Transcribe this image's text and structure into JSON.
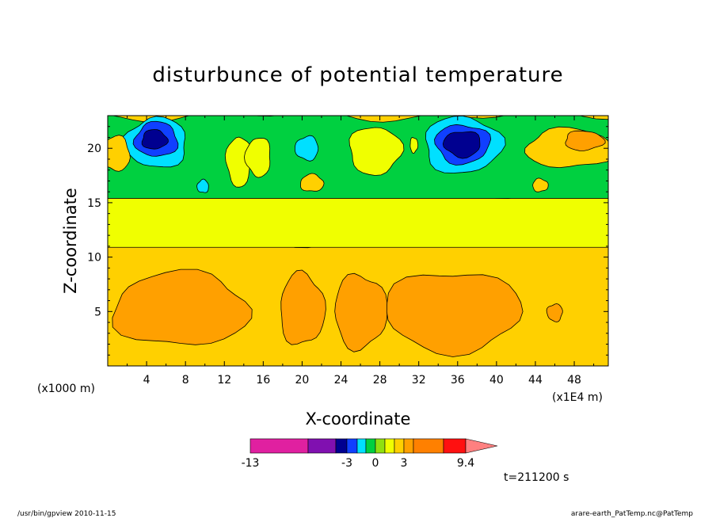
{
  "chart_data": {
    "type": "heatmap",
    "title": "disturbunce of potential temperature",
    "xlabel": "X-coordinate",
    "ylabel": "Z-coordinate",
    "x_unit": "(x1000 m)",
    "x_scale_note": "(x1E4 m)",
    "xlim": [
      0,
      51.5
    ],
    "ylim": [
      0,
      23
    ],
    "x_ticks": [
      4,
      8,
      12,
      16,
      20,
      24,
      28,
      32,
      36,
      40,
      44,
      48
    ],
    "y_ticks": [
      5,
      10,
      15,
      20
    ],
    "time_label": "t=211200 s",
    "colorbar": {
      "levels": [
        -13,
        -3,
        0,
        3,
        9.4
      ],
      "level_labels": [
        "-13",
        "-3",
        "0",
        "3",
        "9.4"
      ],
      "colors": [
        "#e020a0",
        "#8010b0",
        "#000090",
        "#1040ff",
        "#00e0ff",
        "#00d040",
        "#90e010",
        "#f0ff00",
        "#ffd000",
        "#ffa000",
        "#ff8000",
        "#ff1010",
        "#ff8080",
        "#ffc0c0"
      ]
    },
    "bands": [
      {
        "z_top": 11.5,
        "color": "#ffd000"
      },
      {
        "z_top": 16.0,
        "color": "#f0ff00"
      },
      {
        "z_top": 23.0,
        "color": "#00d040"
      }
    ],
    "features": [
      {
        "kind": "warm",
        "x": 7.5,
        "z": 5.2,
        "rx": 7.0,
        "rz": 3.4,
        "color": "#ffa000"
      },
      {
        "kind": "warm",
        "x": 20.0,
        "z": 5.2,
        "rx": 2.3,
        "rz": 3.3,
        "color": "#ffa000"
      },
      {
        "kind": "warm",
        "x": 26.0,
        "z": 5.0,
        "rx": 2.7,
        "rz": 3.4,
        "color": "#ffa000"
      },
      {
        "kind": "warm",
        "x": 35.5,
        "z": 5.0,
        "rx": 7.0,
        "rz": 3.7,
        "color": "#ffa000"
      },
      {
        "kind": "warm",
        "x": 46.0,
        "z": 4.9,
        "rx": 0.8,
        "rz": 0.8,
        "color": "#ffa000"
      },
      {
        "kind": "cold",
        "x": 5.0,
        "z": 20.5,
        "rx": 3.2,
        "rz": 2.3,
        "color": "#00e0ff"
      },
      {
        "kind": "cold",
        "x": 5.0,
        "z": 20.8,
        "rx": 2.2,
        "rz": 1.6,
        "color": "#1040ff"
      },
      {
        "kind": "cold",
        "x": 4.8,
        "z": 20.8,
        "rx": 1.3,
        "rz": 0.9,
        "color": "#000090"
      },
      {
        "kind": "cold",
        "x": 36.5,
        "z": 20.3,
        "rx": 4.0,
        "rz": 2.6,
        "color": "#00e0ff"
      },
      {
        "kind": "cold",
        "x": 36.5,
        "z": 20.4,
        "rx": 2.8,
        "rz": 1.8,
        "color": "#1040ff"
      },
      {
        "kind": "cold",
        "x": 36.5,
        "z": 20.4,
        "rx": 1.9,
        "rz": 1.2,
        "color": "#000090"
      },
      {
        "kind": "cold",
        "x": 20.5,
        "z": 20.0,
        "rx": 1.2,
        "rz": 1.1,
        "color": "#00e0ff"
      },
      {
        "kind": "cold",
        "x": 9.8,
        "z": 16.5,
        "rx": 0.6,
        "rz": 0.6,
        "color": "#00e0ff"
      },
      {
        "kind": "warm",
        "x": 47.5,
        "z": 20.0,
        "rx": 4.5,
        "rz": 1.8,
        "color": "#ffd000"
      },
      {
        "kind": "warm",
        "x": 49.0,
        "z": 20.7,
        "rx": 2.0,
        "rz": 0.9,
        "color": "#ffa000"
      },
      {
        "kind": "neutral",
        "x": 27.5,
        "z": 19.8,
        "rx": 2.7,
        "rz": 2.2,
        "color": "#f0ff00"
      },
      {
        "kind": "neutral",
        "x": 13.5,
        "z": 18.8,
        "rx": 1.3,
        "rz": 2.3,
        "color": "#f0ff00"
      },
      {
        "kind": "neutral",
        "x": 15.5,
        "z": 19.2,
        "rx": 1.3,
        "rz": 1.8,
        "color": "#f0ff00"
      },
      {
        "kind": "neutral",
        "x": 0.8,
        "z": 19.5,
        "rx": 1.5,
        "rz": 1.6,
        "color": "#ffd000"
      },
      {
        "kind": "neutral",
        "x": 21.0,
        "z": 16.8,
        "rx": 1.2,
        "rz": 0.8,
        "color": "#ffd000"
      },
      {
        "kind": "neutral",
        "x": 44.5,
        "z": 16.6,
        "rx": 0.8,
        "rz": 0.6,
        "color": "#ffd000"
      },
      {
        "kind": "neutral",
        "x": 31.5,
        "z": 20.3,
        "rx": 0.4,
        "rz": 0.7,
        "color": "#f0ff00"
      }
    ]
  },
  "footer": {
    "left": "/usr/bin/gpview   2010-11-15",
    "right": "arare-earth_PatTemp.nc@PatTemp"
  }
}
